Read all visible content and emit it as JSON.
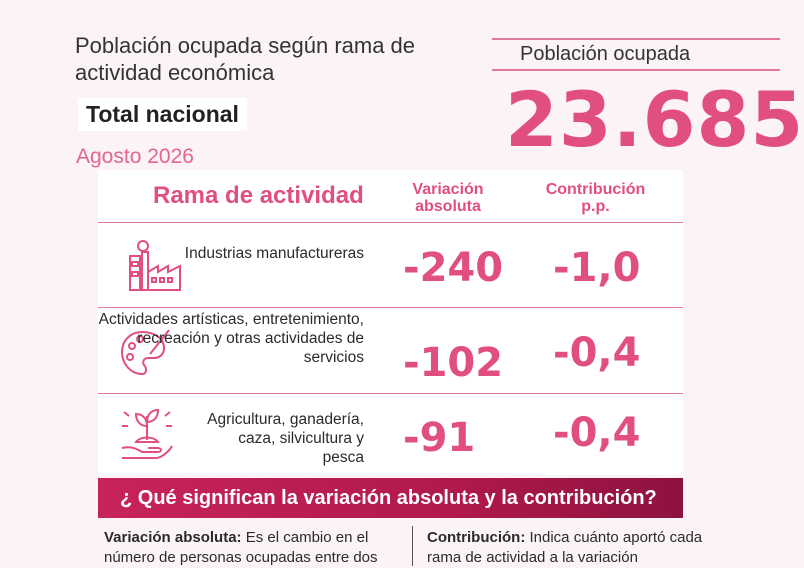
{
  "header": {
    "title": "Población ocupada según rama de actividad económica",
    "scope": "Total nacional",
    "period": "Agosto 2026"
  },
  "kpi": {
    "label": "Población ocupada",
    "value": "23.685"
  },
  "table": {
    "headers": {
      "branch": "Rama de actividad",
      "variation": "Variación absoluta",
      "contribution": "Contribución p.p."
    },
    "rows": [
      {
        "icon": "factory-icon",
        "label": "Industrias manufactureras",
        "variation": "-240",
        "contribution": "-1,0"
      },
      {
        "icon": "palette-icon",
        "label": "Actividades artísticas, entretenimiento, recreación y otras actividades de servicios",
        "variation": "-102",
        "contribution": "-0,4"
      },
      {
        "icon": "plant-hand-icon",
        "label": "Agricultura, ganadería, caza, silvicultura y pesca",
        "variation": "-91",
        "contribution": "-0,4"
      }
    ]
  },
  "banner": {
    "text": "¿ Qué significan la variación absoluta y la contribución?"
  },
  "definitions": {
    "left_term": "Variación absoluta:",
    "left_text": "Es el cambio en el número de personas ocupadas entre dos",
    "right_term": "Contribución:",
    "right_text": "Indica cuánto aportó cada rama de actividad a la variación"
  },
  "colors": {
    "accent": "#e14f7f",
    "banner": "#b1194c",
    "background": "#fbf3f5"
  }
}
